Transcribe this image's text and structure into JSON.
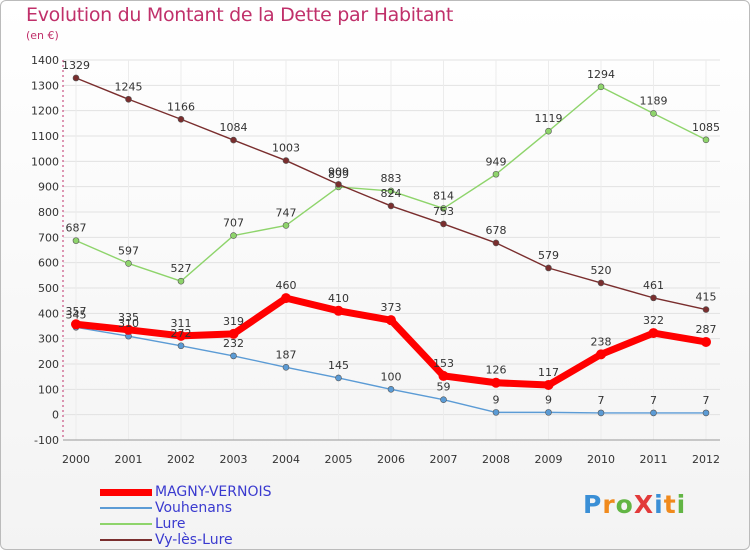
{
  "title": "Evolution du Montant de la Dette par Habitant",
  "unit_label": "(en €)",
  "logo_text": "ProXiti",
  "chart_data": {
    "type": "line",
    "title": "Evolution du Montant de la Dette par Habitant",
    "subtitle": "(en €)",
    "xlabel": "",
    "ylabel": "",
    "ylim": [
      -100,
      1400
    ],
    "ytick_step": 100,
    "x": [
      "2000",
      "2001",
      "2002",
      "2003",
      "2004",
      "2005",
      "2006",
      "2007",
      "2008",
      "2009",
      "2010",
      "2011",
      "2012"
    ],
    "grid": true,
    "legend_position": "bottom-left",
    "series": [
      {
        "name": "MAGNY-VERNOIS",
        "color": "#ff0000",
        "values": [
          357,
          335,
          311,
          319,
          460,
          410,
          373,
          153,
          126,
          117,
          238,
          322,
          287
        ]
      },
      {
        "name": "Vouhenans",
        "color": "#5b9bd5",
        "values": [
          345,
          310,
          272,
          232,
          187,
          145,
          100,
          59,
          9,
          9,
          7,
          7,
          7
        ]
      },
      {
        "name": "Lure",
        "color": "#8ed46b",
        "values": [
          687,
          597,
          527,
          707,
          747,
          899,
          883,
          814,
          949,
          1119,
          1294,
          1189,
          1085
        ]
      },
      {
        "name": "Vy-lès-Lure",
        "color": "#7a2e2e",
        "values": [
          1329,
          1245,
          1166,
          1084,
          1003,
          909,
          824,
          753,
          678,
          579,
          520,
          461,
          415
        ]
      }
    ]
  }
}
